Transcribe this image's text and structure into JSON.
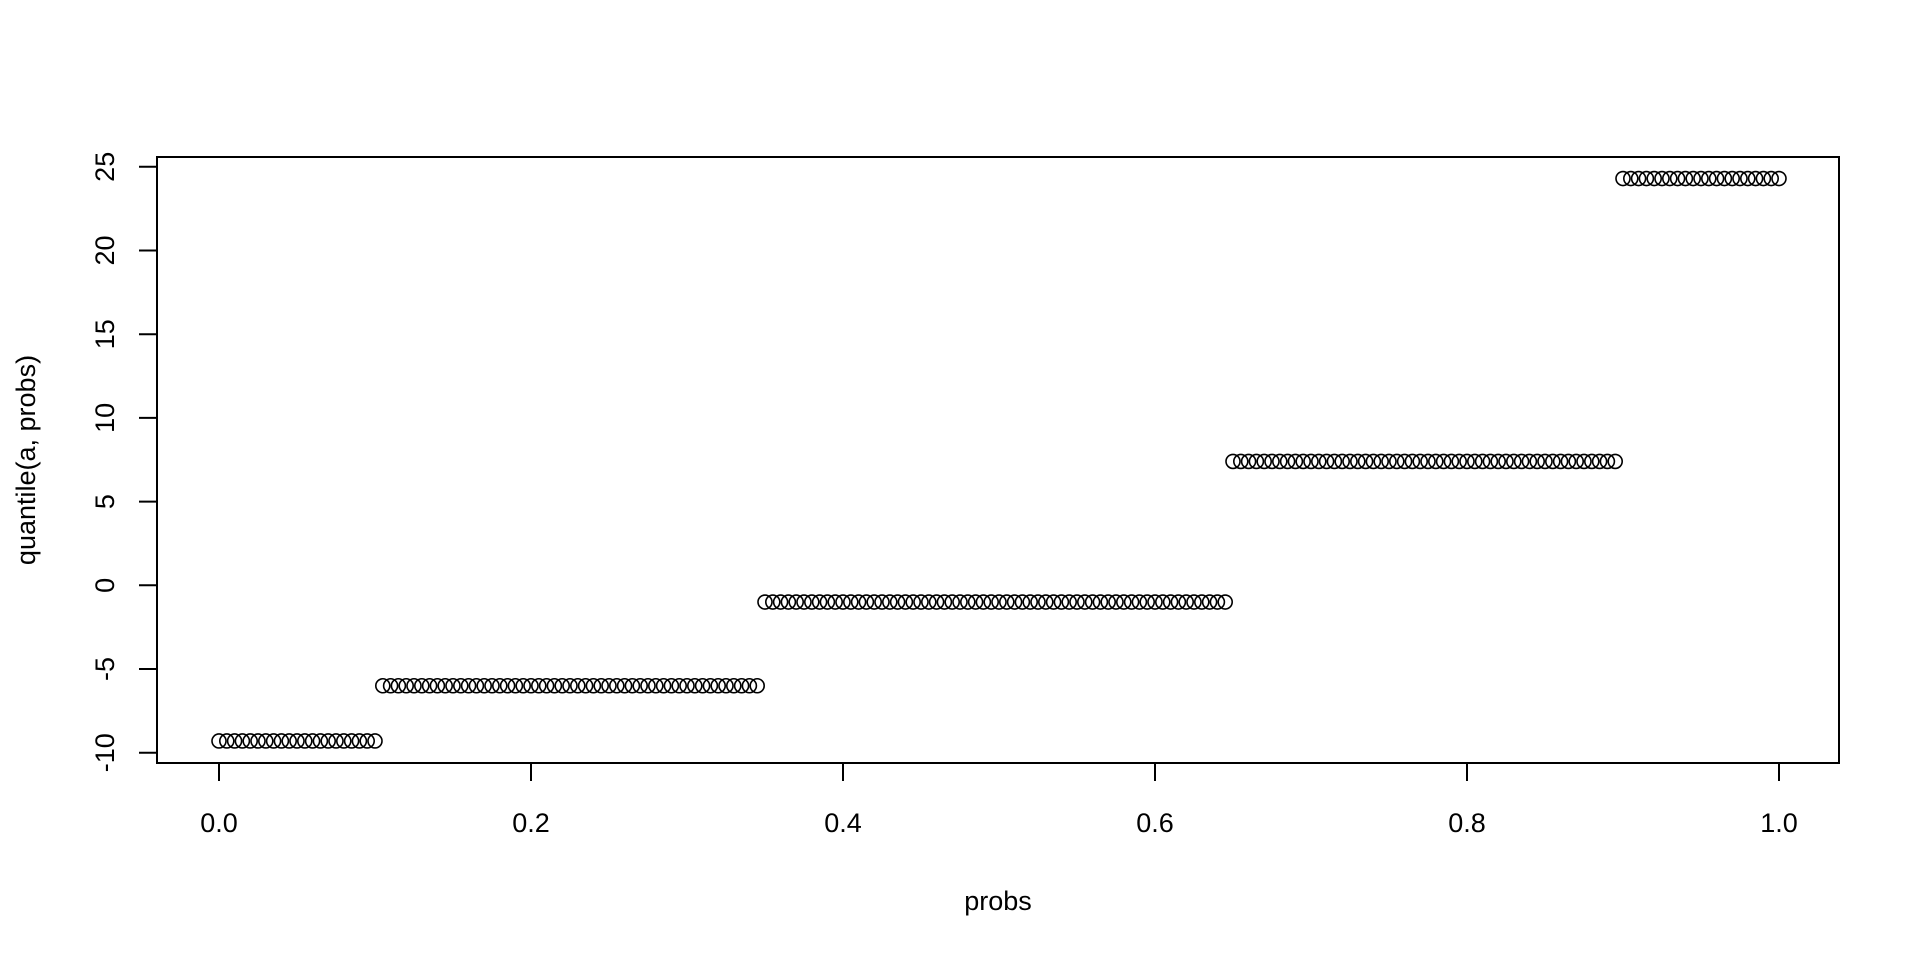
{
  "chart_data": {
    "type": "scatter",
    "title": "",
    "xlabel": "probs",
    "ylabel": "quantile(a, probs)",
    "xlim": [
      0,
      1
    ],
    "ylim": [
      -10,
      25
    ],
    "x_ticks": [
      "0.0",
      "0.2",
      "0.4",
      "0.6",
      "0.8",
      "1.0"
    ],
    "y_ticks": [
      "-10",
      "-5",
      "0",
      "5",
      "10",
      "15",
      "20",
      "25"
    ],
    "grid": false,
    "marker": "open-circle",
    "color": "#000000",
    "x_step": 0.005,
    "segments": [
      {
        "x_from": 0.0,
        "x_to": 0.1,
        "y": -9.3
      },
      {
        "x_from": 0.105,
        "x_to": 0.345,
        "y": -6.0
      },
      {
        "x_from": 0.35,
        "x_to": 0.645,
        "y": -1.0
      },
      {
        "x_from": 0.65,
        "x_to": 0.895,
        "y": 7.4
      },
      {
        "x_from": 0.9,
        "x_to": 1.0,
        "y": 24.3
      }
    ]
  }
}
